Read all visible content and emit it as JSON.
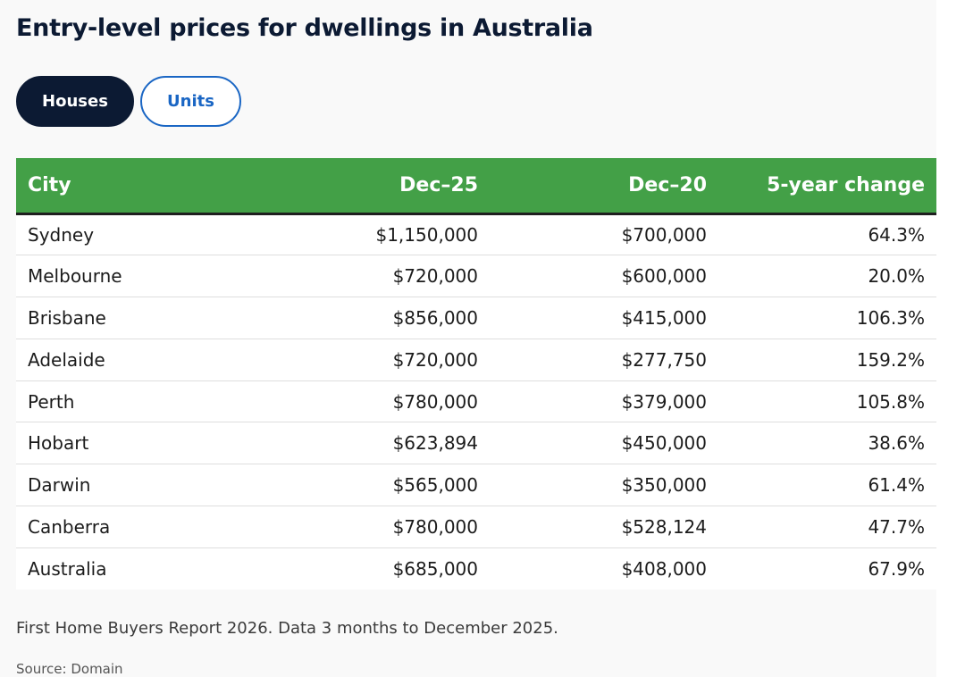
{
  "title": "Entry-level prices for dwellings in Australia",
  "toggles": {
    "houses": "Houses",
    "units": "Units",
    "active": "houses"
  },
  "colors": {
    "header_green": "#43a047",
    "navy": "#0c1a33",
    "link_blue": "#1a66c4"
  },
  "table": {
    "headers": {
      "city": "City",
      "dec25": "Dec–25",
      "dec20": "Dec–20",
      "change": "5-year change"
    },
    "rows": [
      {
        "city": "Sydney",
        "dec25": "$1,150,000",
        "dec20": "$700,000",
        "change": "64.3%"
      },
      {
        "city": "Melbourne",
        "dec25": "$720,000",
        "dec20": "$600,000",
        "change": "20.0%"
      },
      {
        "city": "Brisbane",
        "dec25": "$856,000",
        "dec20": "$415,000",
        "change": "106.3%"
      },
      {
        "city": "Adelaide",
        "dec25": "$720,000",
        "dec20": "$277,750",
        "change": "159.2%"
      },
      {
        "city": "Perth",
        "dec25": "$780,000",
        "dec20": "$379,000",
        "change": "105.8%"
      },
      {
        "city": "Hobart",
        "dec25": "$623,894",
        "dec20": "$450,000",
        "change": "38.6%"
      },
      {
        "city": "Darwin",
        "dec25": "$565,000",
        "dec20": "$350,000",
        "change": "61.4%"
      },
      {
        "city": "Canberra",
        "dec25": "$780,000",
        "dec20": "$528,124",
        "change": "47.7%"
      },
      {
        "city": "Australia",
        "dec25": "$685,000",
        "dec20": "$408,000",
        "change": "67.9%"
      }
    ]
  },
  "note": "First Home Buyers Report 2026. Data 3 months to December 2025.",
  "source": "Source: Domain"
}
